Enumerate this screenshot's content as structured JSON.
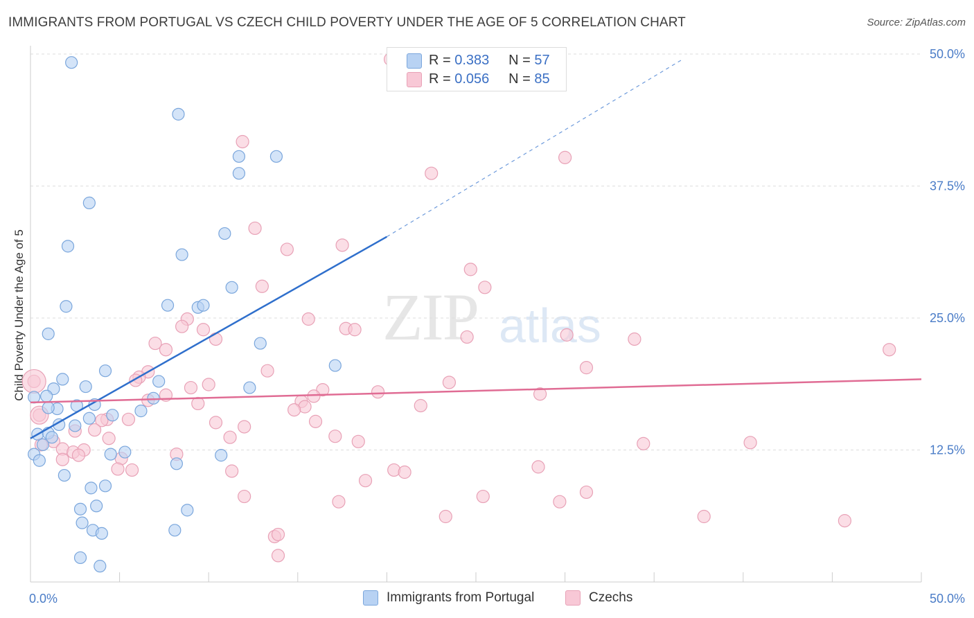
{
  "title": "IMMIGRANTS FROM PORTUGAL VS CZECH CHILD POVERTY UNDER THE AGE OF 5 CORRELATION CHART",
  "source": "Source: ZipAtlas.com",
  "watermark": {
    "zip": "ZIP",
    "atlas": "atlas"
  },
  "legend_top": {
    "rows": [
      {
        "r_label": "R =",
        "r_value": "0.383",
        "n_label": "N =",
        "n_value": "57"
      },
      {
        "r_label": "R =",
        "r_value": "0.056",
        "n_label": "N =",
        "n_value": "85"
      }
    ]
  },
  "legend_bottom": [
    "Immigrants from Portugal",
    "Czechs"
  ],
  "colors": {
    "blue_fill": "#b8d2f3",
    "blue_stroke": "#7aa6dc",
    "blue_line": "#2f6fcc",
    "pink_fill": "#f8c8d6",
    "pink_stroke": "#e8a1b6",
    "pink_line": "#e06c94",
    "tick_text": "#4a7cc7",
    "grid": "#dddddd"
  },
  "chart_data": {
    "type": "scatter",
    "title": "IMMIGRANTS FROM PORTUGAL VS CZECH CHILD POVERTY UNDER THE AGE OF 5 CORRELATION CHART",
    "xlabel": "",
    "ylabel": "Child Poverty Under the Age of 5",
    "xlim": [
      0,
      50
    ],
    "ylim": [
      0,
      50
    ],
    "x_tick_labels": [
      "0.0%",
      "50.0%"
    ],
    "y_ticks": [
      12.5,
      25.0,
      37.5,
      50.0
    ],
    "y_tick_labels": [
      "12.5%",
      "25.0%",
      "37.5%",
      "50.0%"
    ],
    "grid": true,
    "series": [
      {
        "name": "Immigrants from Portugal",
        "R": 0.383,
        "N": 57,
        "trend": {
          "x0": 0,
          "y0": 13.6,
          "x1": 20,
          "y1": 32.7,
          "dashed_to_x": 36.6,
          "dashed_to_y": 49.5
        },
        "points": [
          [
            2.3,
            49.2
          ],
          [
            8.3,
            44.3
          ],
          [
            11.7,
            40.3
          ],
          [
            13.8,
            40.3
          ],
          [
            11.7,
            38.7
          ],
          [
            3.3,
            35.9
          ],
          [
            2.1,
            31.8
          ],
          [
            8.5,
            31.0
          ],
          [
            10.9,
            33.0
          ],
          [
            11.3,
            27.9
          ],
          [
            2.0,
            26.1
          ],
          [
            7.7,
            26.2
          ],
          [
            9.4,
            26.0
          ],
          [
            9.7,
            26.2
          ],
          [
            1.0,
            23.5
          ],
          [
            12.9,
            22.6
          ],
          [
            17.1,
            20.5
          ],
          [
            4.2,
            20.0
          ],
          [
            1.8,
            19.2
          ],
          [
            1.3,
            18.3
          ],
          [
            3.1,
            18.5
          ],
          [
            7.2,
            19.0
          ],
          [
            12.3,
            18.4
          ],
          [
            0.2,
            17.5
          ],
          [
            0.9,
            17.6
          ],
          [
            6.9,
            17.4
          ],
          [
            1.5,
            16.4
          ],
          [
            2.6,
            16.7
          ],
          [
            3.6,
            16.8
          ],
          [
            1.0,
            16.5
          ],
          [
            6.2,
            16.2
          ],
          [
            4.6,
            15.8
          ],
          [
            3.3,
            15.5
          ],
          [
            1.6,
            14.9
          ],
          [
            2.5,
            14.8
          ],
          [
            0.4,
            14.0
          ],
          [
            1.0,
            14.1
          ],
          [
            1.2,
            13.7
          ],
          [
            0.7,
            13.0
          ],
          [
            4.5,
            12.1
          ],
          [
            5.3,
            12.3
          ],
          [
            0.2,
            12.1
          ],
          [
            0.5,
            11.5
          ],
          [
            8.2,
            11.2
          ],
          [
            10.7,
            12.0
          ],
          [
            1.9,
            10.1
          ],
          [
            4.2,
            9.1
          ],
          [
            3.4,
            8.9
          ],
          [
            2.8,
            6.9
          ],
          [
            3.7,
            7.2
          ],
          [
            8.8,
            6.8
          ],
          [
            2.9,
            5.6
          ],
          [
            3.5,
            4.9
          ],
          [
            4.0,
            4.6
          ],
          [
            8.1,
            4.9
          ],
          [
            2.8,
            2.3
          ],
          [
            3.9,
            1.5
          ]
        ]
      },
      {
        "name": "Czechs",
        "R": 0.056,
        "N": 85,
        "trend": {
          "x0": 0,
          "y0": 17.0,
          "x1": 50,
          "y1": 19.2
        },
        "points": [
          [
            20.2,
            49.5
          ],
          [
            11.9,
            41.7
          ],
          [
            30.0,
            40.2
          ],
          [
            22.5,
            38.7
          ],
          [
            12.6,
            33.5
          ],
          [
            14.4,
            31.5
          ],
          [
            17.5,
            31.9
          ],
          [
            24.7,
            29.6
          ],
          [
            13.0,
            28.0
          ],
          [
            25.5,
            27.9
          ],
          [
            15.6,
            24.9
          ],
          [
            8.8,
            24.9
          ],
          [
            8.5,
            24.2
          ],
          [
            9.7,
            23.9
          ],
          [
            17.7,
            24.0
          ],
          [
            18.2,
            23.9
          ],
          [
            24.5,
            23.2
          ],
          [
            10.4,
            23.0
          ],
          [
            7.0,
            22.6
          ],
          [
            30.1,
            23.4
          ],
          [
            33.9,
            23.0
          ],
          [
            48.2,
            22.0
          ],
          [
            7.6,
            22.0
          ],
          [
            31.2,
            20.3
          ],
          [
            13.3,
            20.0
          ],
          [
            6.6,
            19.9
          ],
          [
            6.1,
            19.4
          ],
          [
            5.9,
            19.1
          ],
          [
            23.5,
            18.9
          ],
          [
            10.0,
            18.7
          ],
          [
            9.0,
            18.4
          ],
          [
            16.4,
            18.2
          ],
          [
            19.5,
            18.0
          ],
          [
            28.6,
            17.8
          ],
          [
            15.9,
            17.6
          ],
          [
            7.6,
            17.7
          ],
          [
            6.6,
            17.2
          ],
          [
            15.2,
            17.1
          ],
          [
            9.4,
            16.9
          ],
          [
            15.4,
            16.6
          ],
          [
            21.9,
            16.7
          ],
          [
            14.8,
            16.3
          ],
          [
            0.5,
            15.8
          ],
          [
            4.3,
            15.4
          ],
          [
            5.5,
            15.4
          ],
          [
            10.4,
            15.1
          ],
          [
            4.0,
            15.3
          ],
          [
            12.0,
            14.7
          ],
          [
            16.0,
            15.2
          ],
          [
            3.6,
            14.4
          ],
          [
            2.5,
            14.3
          ],
          [
            17.1,
            13.8
          ],
          [
            11.2,
            13.7
          ],
          [
            4.4,
            13.6
          ],
          [
            1.3,
            13.3
          ],
          [
            18.4,
            13.3
          ],
          [
            0.6,
            13.0
          ],
          [
            34.4,
            13.1
          ],
          [
            40.4,
            13.2
          ],
          [
            1.8,
            12.6
          ],
          [
            2.4,
            12.3
          ],
          [
            3.0,
            12.5
          ],
          [
            2.7,
            12.0
          ],
          [
            8.2,
            12.1
          ],
          [
            5.1,
            11.7
          ],
          [
            1.8,
            11.6
          ],
          [
            4.9,
            10.7
          ],
          [
            11.3,
            10.5
          ],
          [
            5.7,
            10.6
          ],
          [
            20.4,
            10.6
          ],
          [
            21.0,
            10.4
          ],
          [
            28.5,
            10.9
          ],
          [
            18.8,
            9.6
          ],
          [
            31.2,
            8.5
          ],
          [
            12.0,
            8.1
          ],
          [
            25.4,
            8.1
          ],
          [
            17.3,
            7.6
          ],
          [
            29.7,
            7.6
          ],
          [
            23.3,
            6.2
          ],
          [
            37.8,
            6.2
          ],
          [
            45.7,
            5.8
          ],
          [
            13.7,
            4.3
          ],
          [
            13.9,
            4.5
          ],
          [
            13.9,
            2.5
          ],
          [
            0.2,
            19.0
          ]
        ]
      }
    ]
  }
}
